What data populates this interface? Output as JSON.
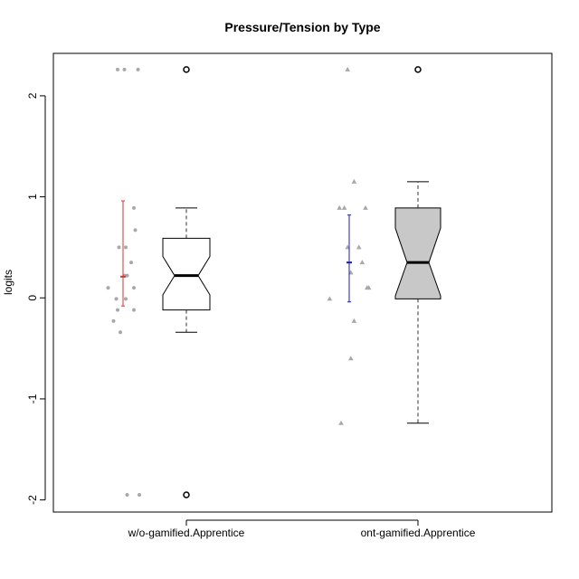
{
  "chart_data": {
    "type": "box",
    "title": "Pressure/Tension by Type",
    "ylabel": "logits",
    "xlabel": "",
    "ylim": [
      -2.12,
      2.42
    ],
    "yticks": [
      -2,
      -1,
      0,
      1,
      2
    ],
    "yticklabels": [
      "-2",
      "-1",
      "0",
      "1",
      "2"
    ],
    "categories": [
      "w/o-gamified.Apprentice",
      "ont-gamified.Apprentice"
    ],
    "grid": false,
    "series": [
      {
        "box": {
          "q1": -0.12,
          "median": 0.22,
          "q3": 0.59,
          "whisker_low": -0.34,
          "whisker_high": 0.89,
          "notch_low": 0.03,
          "notch_high": 0.41
        },
        "fill": "#ffffff",
        "outliers": [
          2.26,
          -1.95
        ],
        "mean": 0.21,
        "ci": [
          -0.08,
          0.96
        ],
        "ci_color": "#e03030",
        "point_shape": "circle",
        "points": [
          {
            "x": -0.4,
            "y": 2.26
          },
          {
            "x": 0.1,
            "y": 2.26
          },
          {
            "x": 1.1,
            "y": 2.26
          },
          {
            "x": 0.8,
            "y": 0.89
          },
          {
            "x": 0.9,
            "y": 0.67
          },
          {
            "x": -0.3,
            "y": 0.5
          },
          {
            "x": 0.2,
            "y": 0.5
          },
          {
            "x": 0.6,
            "y": 0.35
          },
          {
            "x": 0.1,
            "y": 0.22
          },
          {
            "x": 0.3,
            "y": 0.22
          },
          {
            "x": -1.1,
            "y": 0.1
          },
          {
            "x": 0.8,
            "y": 0.1
          },
          {
            "x": -0.5,
            "y": -0.01
          },
          {
            "x": 0.2,
            "y": -0.01
          },
          {
            "x": -0.4,
            "y": -0.12
          },
          {
            "x": 0.8,
            "y": -0.12
          },
          {
            "x": -0.7,
            "y": -0.23
          },
          {
            "x": -0.2,
            "y": -0.34
          },
          {
            "x": 0.3,
            "y": -1.95
          },
          {
            "x": 1.2,
            "y": -1.95
          }
        ]
      },
      {
        "box": {
          "q1": -0.01,
          "median": 0.35,
          "q3": 0.89,
          "whisker_low": -1.24,
          "whisker_high": 1.15,
          "notch_low": 0.02,
          "notch_high": 0.69
        },
        "fill": "#c8c8c8",
        "outliers": [
          2.26
        ],
        "mean": 0.35,
        "ci": [
          -0.04,
          0.82
        ],
        "ci_color": "#1a1acc",
        "point_shape": "triangle",
        "points": [
          {
            "x": -0.1,
            "y": 2.26
          },
          {
            "x": 0.3,
            "y": 1.15
          },
          {
            "x": -0.6,
            "y": 0.89
          },
          {
            "x": -0.3,
            "y": 0.89
          },
          {
            "x": 1.0,
            "y": 0.89
          },
          {
            "x": -0.1,
            "y": 0.5
          },
          {
            "x": 0.6,
            "y": 0.5
          },
          {
            "x": 0.8,
            "y": 0.35
          },
          {
            "x": 0.1,
            "y": 0.25
          },
          {
            "x": 1.1,
            "y": 0.1
          },
          {
            "x": 1.2,
            "y": 0.1
          },
          {
            "x": -1.2,
            "y": -0.01
          },
          {
            "x": 0.3,
            "y": -0.23
          },
          {
            "x": 0.1,
            "y": -0.6
          },
          {
            "x": -0.5,
            "y": -1.24
          }
        ]
      }
    ]
  }
}
